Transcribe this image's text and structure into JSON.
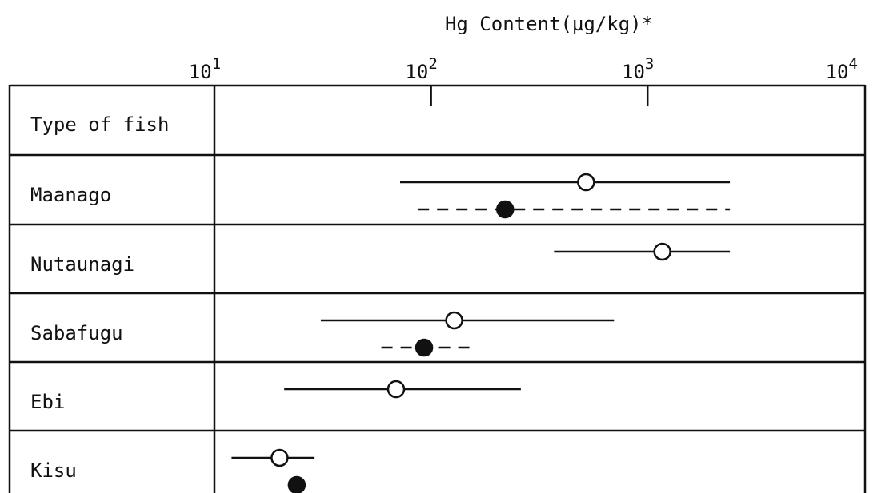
{
  "chart_data": {
    "type": "scatter",
    "title": "Hg Content(µg/kg)*",
    "x_scale": "log",
    "xlim": [
      10,
      10000
    ],
    "x_ticks": [
      {
        "value": 10,
        "base": "10",
        "exp": "1"
      },
      {
        "value": 100,
        "base": "10",
        "exp": "2"
      },
      {
        "value": 1000,
        "base": "10",
        "exp": "3"
      },
      {
        "value": 10000,
        "base": "10",
        "exp": "4"
      }
    ],
    "row_header": "Type of fish",
    "categories": [
      "Maanago",
      "Nutaunagi",
      "Sabafugu",
      "Ebi",
      "Kisu"
    ],
    "series": [
      {
        "marker": "open-circle",
        "line_style": "solid",
        "points": [
          {
            "category": "Maanago",
            "value": 520,
            "min": 72,
            "max": 2400
          },
          {
            "category": "Nutaunagi",
            "value": 1170,
            "min": 370,
            "max": 2400
          },
          {
            "category": "Sabafugu",
            "value": 128,
            "min": 31,
            "max": 700
          },
          {
            "category": "Ebi",
            "value": 69,
            "min": 21,
            "max": 260
          },
          {
            "category": "Kisu",
            "value": 20,
            "min": 12,
            "max": 29
          }
        ]
      },
      {
        "marker": "filled-circle",
        "line_style": "dashed",
        "points": [
          {
            "category": "Maanago",
            "value": 220,
            "min": 87,
            "max": 2400
          },
          {
            "category": "Sabafugu",
            "value": 93,
            "min": 59,
            "max": 155
          },
          {
            "category": "Kisu",
            "value": 24,
            "min": null,
            "max": null
          }
        ]
      }
    ],
    "grid": false,
    "legend": "none"
  }
}
